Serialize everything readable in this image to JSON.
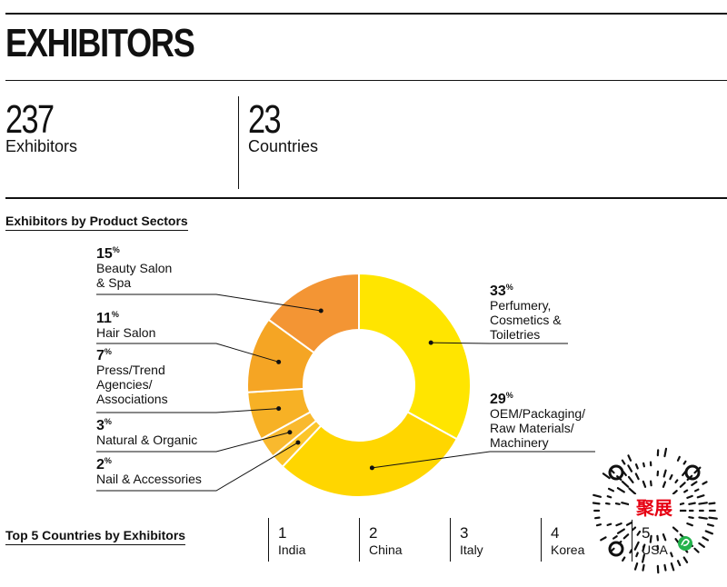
{
  "header": {
    "title": "EXHIBITORS"
  },
  "stats": [
    {
      "value": "237",
      "label": "Exhibitors"
    },
    {
      "value": "23",
      "label": "Countries"
    }
  ],
  "sectors_heading": "Exhibitors by Product Sectors",
  "countries_heading": "Top 5 Countries by Exhibitors",
  "chart_data": {
    "type": "donut",
    "title": "Exhibitors by Product Sectors",
    "unit": "%",
    "categories": [
      "Perfumery, Cosmetics & Toiletries",
      "OEM/Packaging/ Raw Materials/ Machinery",
      "Nail & Accessories",
      "Natural & Organic",
      "Press/Trend Agencies/ Associations",
      "Hair Salon",
      "Beauty Salon & Spa"
    ],
    "values": [
      33,
      29,
      2,
      3,
      7,
      11,
      15
    ],
    "colors": [
      "#FFE500",
      "#FFD600",
      "#FCC52A",
      "#F9B92E",
      "#F7B125",
      "#F5A524",
      "#F39534"
    ],
    "labels": [
      {
        "pct": "33",
        "lines": [
          "Perfumery,",
          "Cosmetics &",
          "Toiletries"
        ]
      },
      {
        "pct": "29",
        "lines": [
          "OEM/Packaging/",
          "Raw Materials/",
          "Machinery"
        ]
      },
      {
        "pct": "2",
        "lines": [
          "Nail & Accessories"
        ]
      },
      {
        "pct": "3",
        "lines": [
          "Natural & Organic"
        ]
      },
      {
        "pct": "7",
        "lines": [
          "Press/Trend",
          "Agencies/",
          "Associations"
        ]
      },
      {
        "pct": "11",
        "lines": [
          "Hair Salon"
        ]
      },
      {
        "pct": "15",
        "lines": [
          "Beauty Salon",
          "& Spa"
        ]
      }
    ]
  },
  "countries": [
    {
      "rank": "1",
      "name": "India"
    },
    {
      "rank": "2",
      "name": "China"
    },
    {
      "rank": "3",
      "name": "Italy"
    },
    {
      "rank": "4",
      "name": "Korea"
    },
    {
      "rank": "5",
      "name": "USA"
    }
  ],
  "qr": {
    "badge_text": "聚展"
  }
}
